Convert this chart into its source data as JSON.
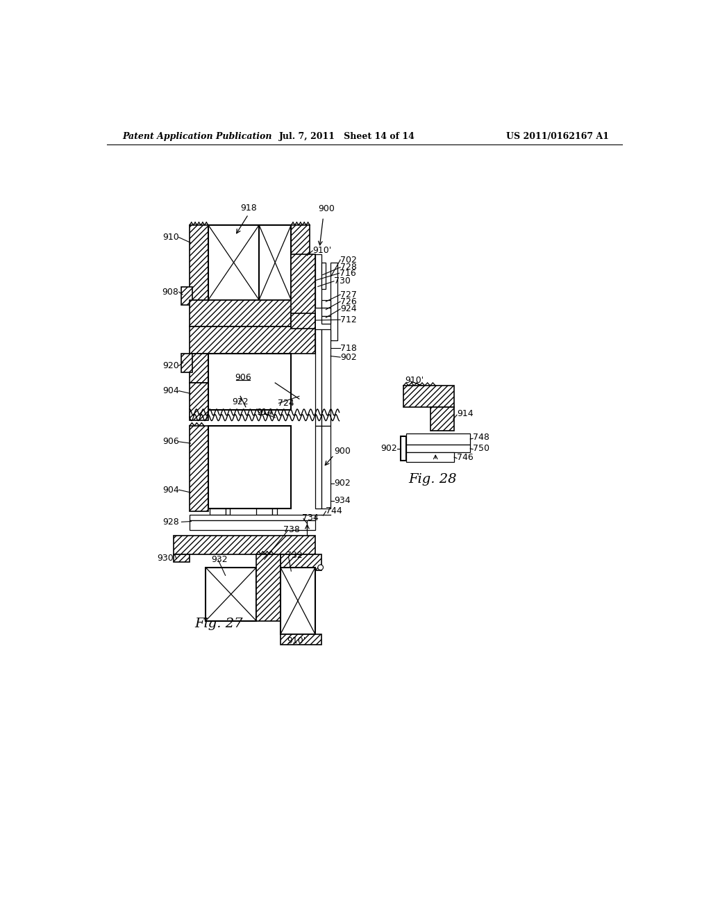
{
  "bg_color": "#ffffff",
  "header_left": "Patent Application Publication",
  "header_mid": "Jul. 7, 2011   Sheet 14 of 14",
  "header_right": "US 2011/0162167 A1",
  "line_color": "#000000"
}
